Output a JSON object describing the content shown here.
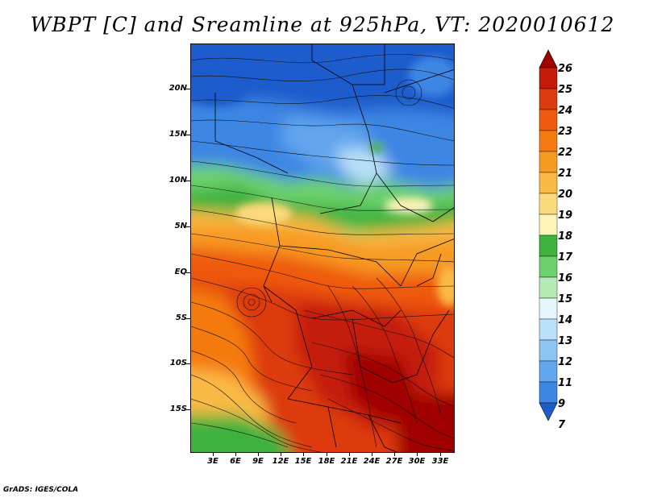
{
  "title": "WBPT [C] and Sreamline at 925hPa, VT: 2020010612",
  "footer": "GrADS: IGES/COLA",
  "lat_labels": [
    "20N",
    "15N",
    "10N",
    "5N",
    "EQ",
    "5S",
    "10S",
    "15S"
  ],
  "lon_labels": [
    "3E",
    "6E",
    "9E",
    "12E",
    "15E",
    "18E",
    "21E",
    "24E",
    "27E",
    "30E",
    "33E"
  ],
  "colorbar": {
    "labels": [
      "26",
      "25",
      "24",
      "23",
      "22",
      "21",
      "20",
      "19",
      "18",
      "17",
      "16",
      "15",
      "14",
      "13",
      "12",
      "11",
      "9",
      "7"
    ],
    "colors": [
      "#a00000",
      "#c41a0a",
      "#dd3a10",
      "#ef5a10",
      "#f57a10",
      "#f79a22",
      "#fab944",
      "#fcd97a",
      "#fcf3b8",
      "#3cb23c",
      "#6cd06c",
      "#b4eab4",
      "#e4f6fc",
      "#b8e0f8",
      "#8cc4f4",
      "#62a6ee",
      "#3c86e4",
      "#1e5ccc"
    ]
  },
  "map": {
    "region": "Central and Southern Africa",
    "field": "Wet-bulb potential temperature (C) with streamlines at 925hPa"
  }
}
